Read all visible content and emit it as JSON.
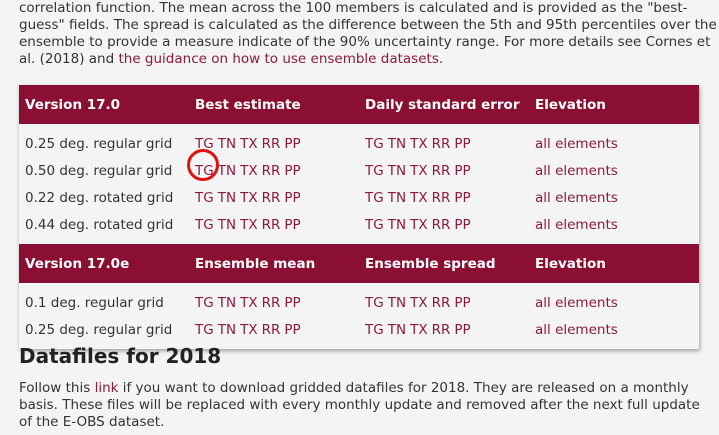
{
  "intro": {
    "line1": "correlation function. The mean across the 100 members is calculated and is provided as the \"best-",
    "line2": "guess\" fields. The spread is calculated as the difference between the 5th and 95th percentiles over the",
    "line3a": "ensemble to provide a measure indicate of the 90% uncertainty range. For more details see Cornes et",
    "line4a": "al. (2018) and ",
    "guidance_link": "the guidance on how to use ensemble datasets",
    "line4b": "."
  },
  "table": {
    "section1": {
      "headers": [
        "Version 17.0",
        "Best estimate",
        "Daily standard error",
        "Elevation"
      ],
      "rows": [
        {
          "label": "0.25 deg. regular grid",
          "best": [
            "TG",
            "TN",
            "TX",
            "RR",
            "PP"
          ],
          "err": [
            "TG",
            "TN",
            "TX",
            "RR",
            "PP"
          ],
          "elev": "all elements"
        },
        {
          "label": "0.50 deg. regular grid",
          "best": [
            "TG",
            "TN",
            "TX",
            "RR",
            "PP"
          ],
          "err": [
            "TG",
            "TN",
            "TX",
            "RR",
            "PP"
          ],
          "elev": "all elements"
        },
        {
          "label": "0.22 deg. rotated grid",
          "best": [
            "TG",
            "TN",
            "TX",
            "RR",
            "PP"
          ],
          "err": [
            "TG",
            "TN",
            "TX",
            "RR",
            "PP"
          ],
          "elev": "all elements"
        },
        {
          "label": "0.44 deg. rotated grid",
          "best": [
            "TG",
            "TN",
            "TX",
            "RR",
            "PP"
          ],
          "err": [
            "TG",
            "TN",
            "TX",
            "RR",
            "PP"
          ],
          "elev": "all elements"
        }
      ]
    },
    "section2": {
      "headers": [
        "Version 17.0e",
        "Ensemble mean",
        "Ensemble spread",
        "Elevation"
      ],
      "rows": [
        {
          "label": "0.1 deg. regular grid",
          "best": [
            "TG",
            "TN",
            "TX",
            "RR",
            "PP"
          ],
          "err": [
            "TG",
            "TN",
            "TX",
            "RR",
            "PP"
          ],
          "elev": "all elements"
        },
        {
          "label": "0.25 deg. regular grid",
          "best": [
            "TG",
            "TN",
            "TX",
            "RR",
            "PP"
          ],
          "err": [
            "TG",
            "TN",
            "TX",
            "RR",
            "PP"
          ],
          "elev": "all elements"
        }
      ]
    }
  },
  "datafiles": {
    "title": "Datafiles for 2018",
    "text_a": "Follow this ",
    "link": "link",
    "text_b": " if you want to download gridded datafiles for 2018. They are released on a monthly basis. These files will be replaced with every monthly update and removed after the next full update of the E-OBS dataset."
  },
  "colors": {
    "header_bg": "#8b0f34",
    "link": "#8b1a3c",
    "highlight_circle": "#e01010"
  }
}
